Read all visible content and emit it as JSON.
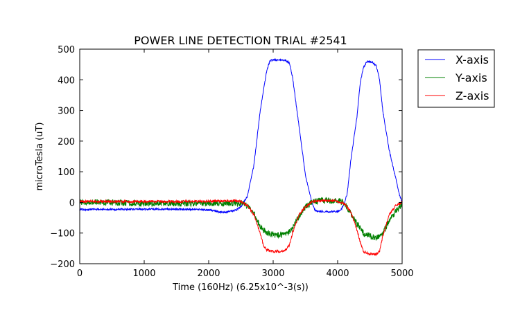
{
  "chart_data": {
    "type": "line",
    "title": "POWER LINE DETECTION TRIAL #2541",
    "xlabel": "Time (160Hz) (6.25x10^-3(s))",
    "ylabel": "microTesla (uT)",
    "xlim": [
      0,
      5000
    ],
    "ylim": [
      -200,
      500
    ],
    "xticks": [
      0,
      1000,
      2000,
      3000,
      4000,
      5000
    ],
    "xtick_labels": [
      "0",
      "1000",
      "2000",
      "3000",
      "4000",
      "5000"
    ],
    "yticks": [
      -200,
      -100,
      0,
      100,
      200,
      300,
      400,
      500
    ],
    "ytick_labels": [
      "−200",
      "−100",
      "0",
      "100",
      "200",
      "300",
      "400",
      "500"
    ],
    "grid": false,
    "legend_position": "outside-top-right",
    "series": [
      {
        "name": "X-axis",
        "color": "#0000ff",
        "noise": 3,
        "x": [
          0,
          500,
          1000,
          1500,
          2000,
          2100,
          2200,
          2300,
          2400,
          2500,
          2600,
          2700,
          2800,
          2900,
          2950,
          3000,
          3100,
          3200,
          3250,
          3300,
          3400,
          3500,
          3600,
          3650,
          3700,
          3800,
          3900,
          4000,
          4050,
          4100,
          4150,
          4200,
          4300,
          4350,
          4400,
          4450,
          4500,
          4550,
          4600,
          4650,
          4700,
          4800,
          4900,
          4950,
          5000
        ],
        "y": [
          -23,
          -23,
          -22,
          -22,
          -24,
          -28,
          -33,
          -30,
          -27,
          -15,
          20,
          120,
          300,
          430,
          462,
          465,
          465,
          463,
          455,
          410,
          250,
          90,
          0,
          -25,
          -30,
          -30,
          -30,
          -30,
          -25,
          -5,
          30,
          130,
          280,
          390,
          440,
          458,
          460,
          455,
          445,
          400,
          300,
          170,
          80,
          30,
          0
        ]
      },
      {
        "name": "Y-axis",
        "color": "#008000",
        "noise": 10,
        "x": [
          0,
          500,
          1000,
          1500,
          2000,
          2300,
          2500,
          2600,
          2700,
          2800,
          2900,
          3000,
          3100,
          3200,
          3300,
          3400,
          3500,
          3600,
          3700,
          3800,
          3900,
          4000,
          4100,
          4200,
          4300,
          4400,
          4500,
          4600,
          4700,
          4800,
          4900,
          5000
        ],
        "y": [
          2,
          0,
          -4,
          -3,
          -3,
          -3,
          -3,
          -10,
          -35,
          -80,
          -100,
          -105,
          -108,
          -105,
          -85,
          -45,
          -15,
          0,
          5,
          7,
          5,
          5,
          0,
          -35,
          -70,
          -100,
          -110,
          -115,
          -100,
          -60,
          -30,
          -5
        ]
      },
      {
        "name": "Z-axis",
        "color": "#ff0000",
        "noise": 4,
        "x": [
          0,
          500,
          1000,
          1500,
          2000,
          2200,
          2400,
          2500,
          2600,
          2700,
          2800,
          2850,
          2900,
          3000,
          3100,
          3200,
          3250,
          3300,
          3400,
          3500,
          3600,
          3700,
          3800,
          3900,
          4000,
          4100,
          4200,
          4300,
          4350,
          4400,
          4500,
          4600,
          4650,
          4700,
          4800,
          4900,
          5000
        ],
        "y": [
          3,
          3,
          3,
          3,
          4,
          5,
          5,
          3,
          -10,
          -40,
          -100,
          -140,
          -155,
          -160,
          -160,
          -155,
          -140,
          -100,
          -40,
          -15,
          2,
          5,
          5,
          5,
          3,
          -3,
          -30,
          -90,
          -130,
          -160,
          -168,
          -168,
          -160,
          -110,
          -40,
          -10,
          0
        ]
      }
    ]
  }
}
